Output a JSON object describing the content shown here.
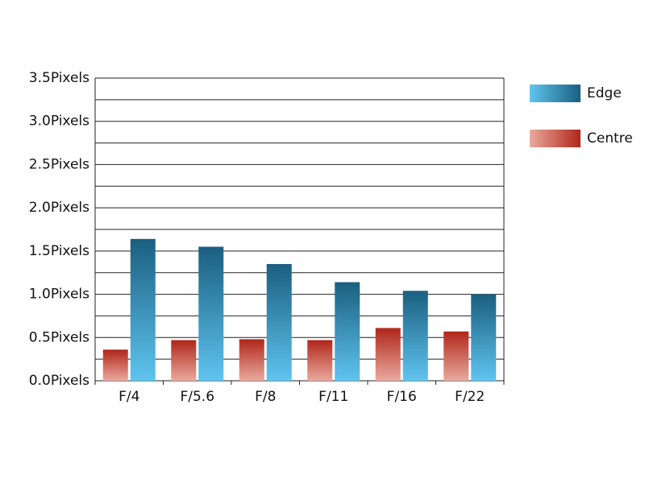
{
  "chart_data": {
    "type": "bar",
    "categories": [
      "F/4",
      "F/5.6",
      "F/8",
      "F/11",
      "F/16",
      "F/22"
    ],
    "series": [
      {
        "name": "Edge",
        "color": "#1a5f80",
        "light_color": "#5fc4ef",
        "values": [
          1.64,
          1.55,
          1.35,
          1.14,
          1.04,
          1.0
        ]
      },
      {
        "name": "Centre",
        "color": "#b0261a",
        "light_color": "#eaa99e",
        "values": [
          0.36,
          0.47,
          0.48,
          0.47,
          0.61,
          0.57
        ]
      }
    ],
    "ylim": [
      0,
      3.5
    ],
    "yticks": [
      {
        "value": 0,
        "label": "0.0Pixels"
      },
      {
        "value": 0.5,
        "label": "0.5Pixels"
      },
      {
        "value": 1,
        "label": "1.0Pixels"
      },
      {
        "value": 1.5,
        "label": "1.5Pixels"
      },
      {
        "value": 2,
        "label": "2.0Pixels"
      },
      {
        "value": 2.5,
        "label": "2.5Pixels"
      },
      {
        "value": 3,
        "label": "3.0Pixels"
      },
      {
        "value": 3.5,
        "label": "3.5Pixels"
      }
    ],
    "yminorticks": [
      0.25,
      0.75,
      1.25,
      1.75,
      2.25,
      2.75,
      3.25
    ],
    "grid": true,
    "legend": "right"
  }
}
